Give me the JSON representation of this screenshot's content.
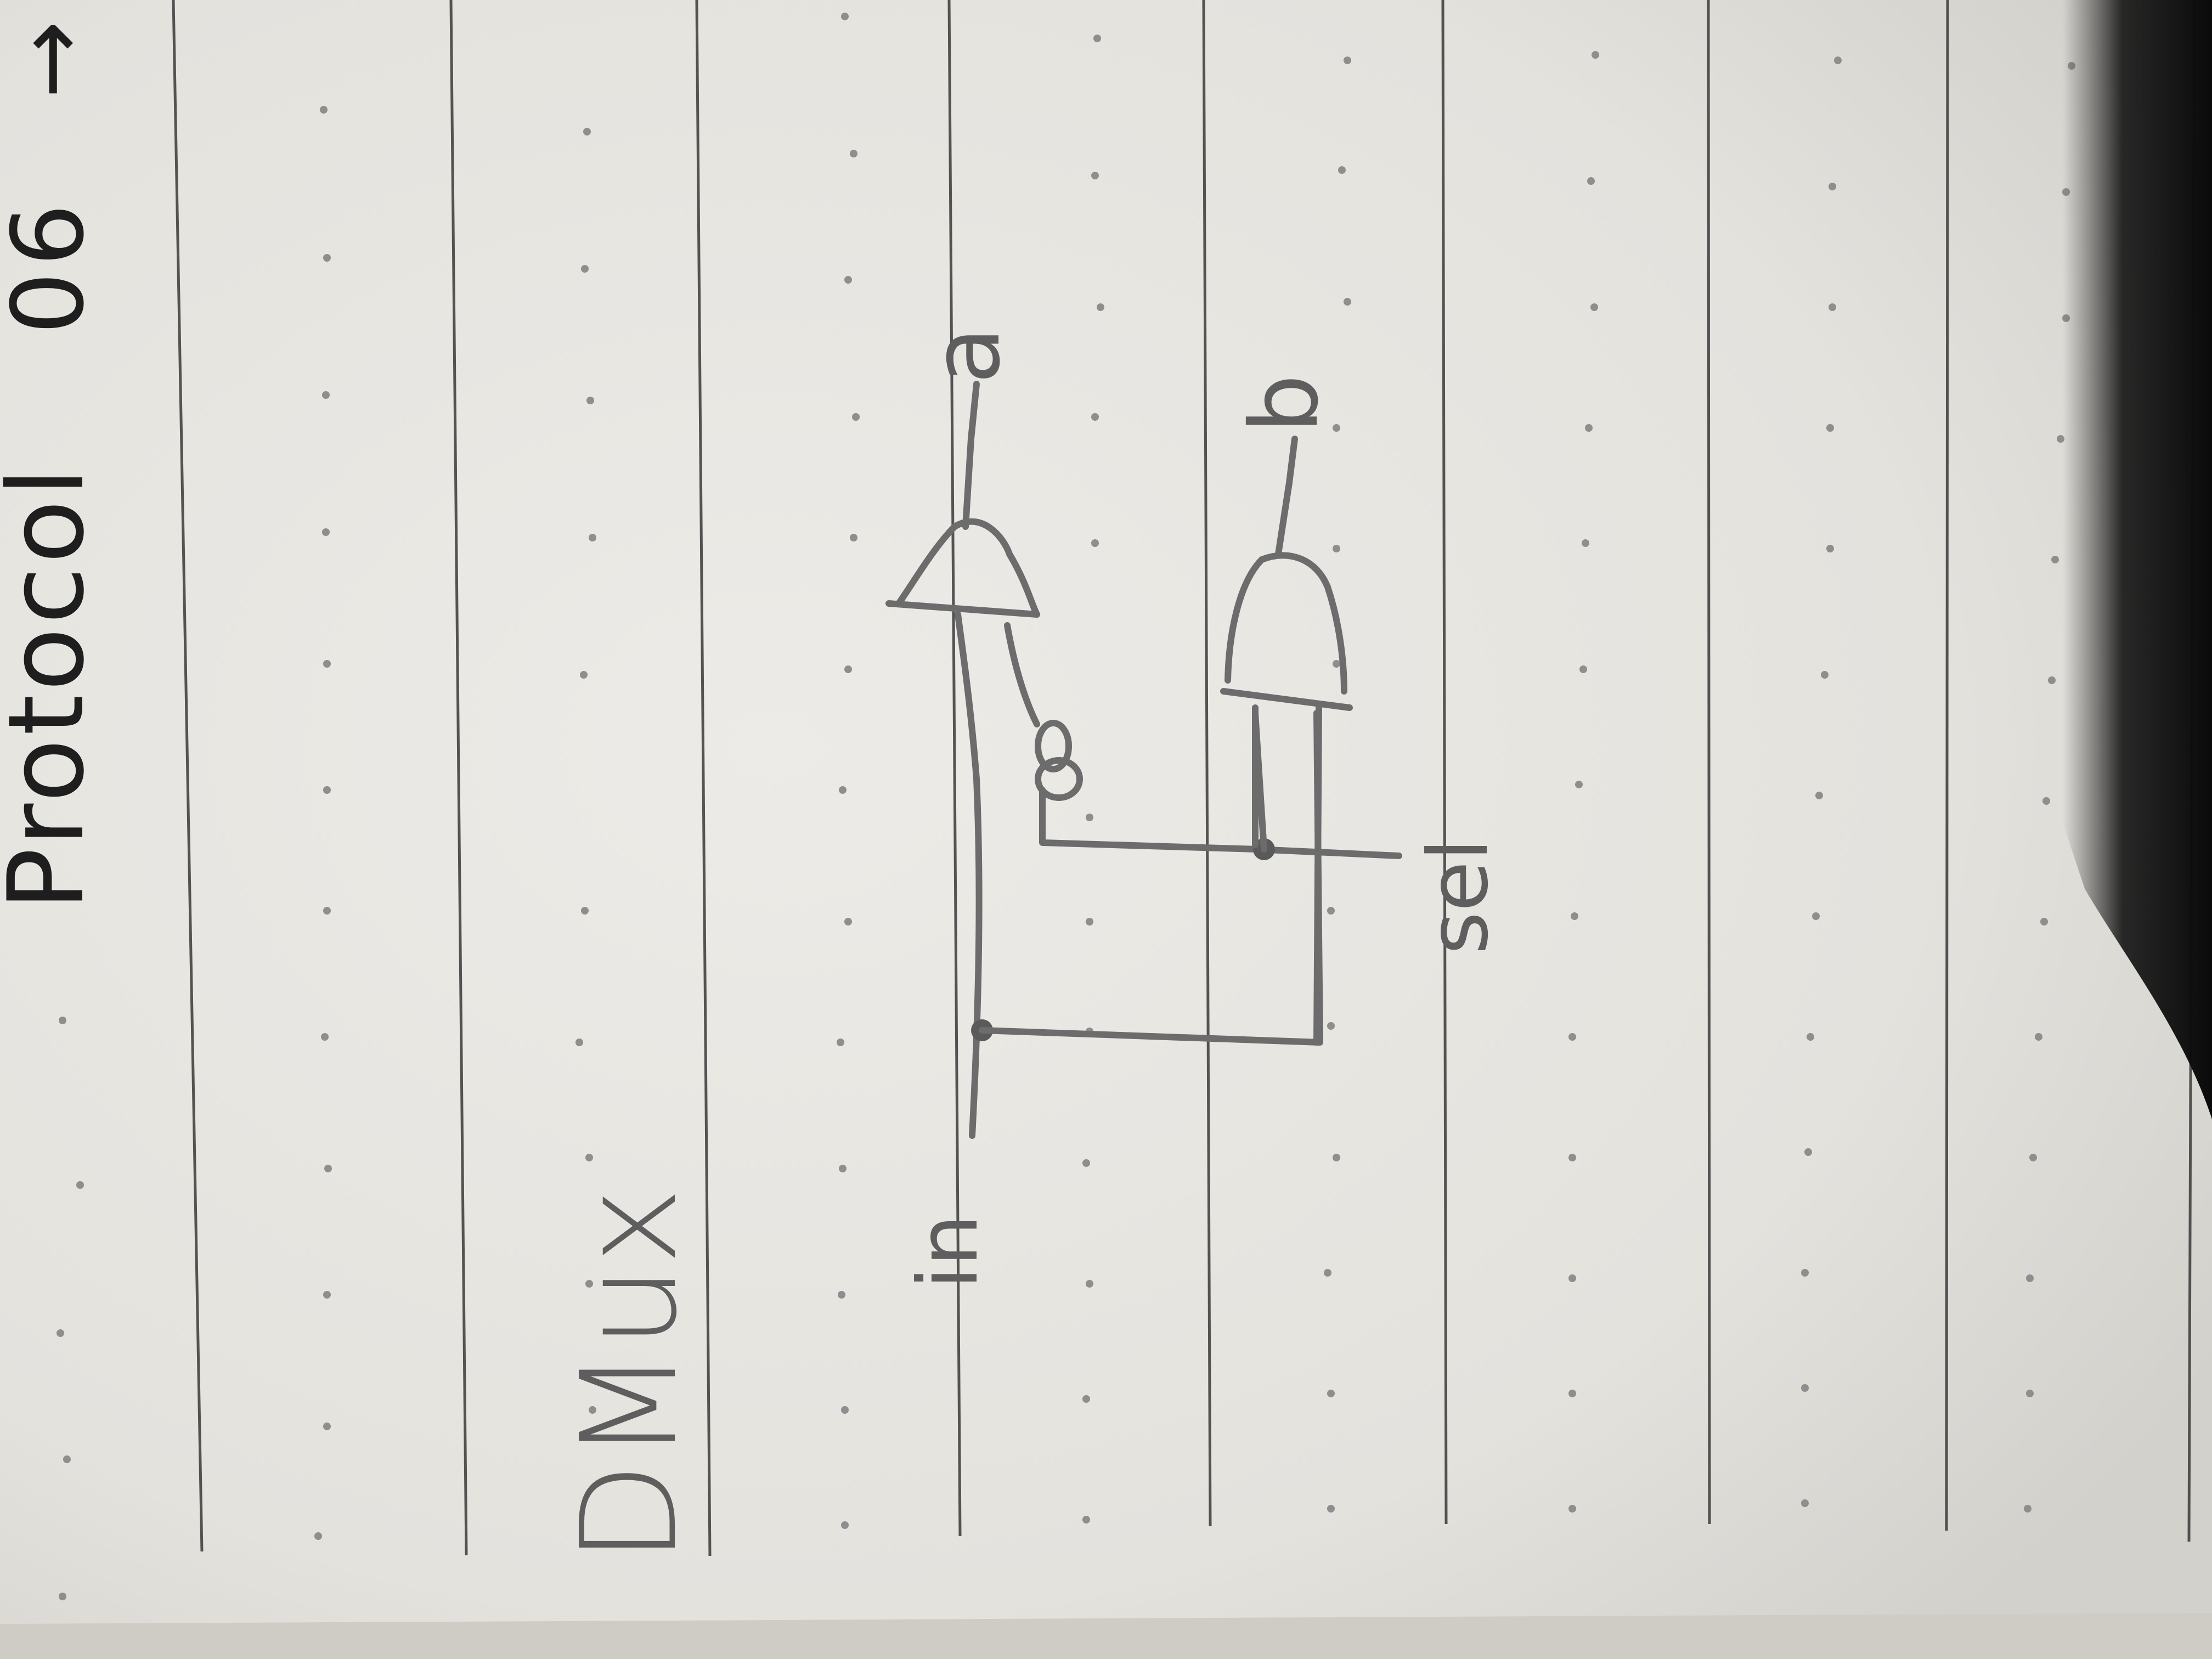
{
  "page": {
    "paper_color": "#e8e6e1",
    "line_color": "#3a3a3a",
    "dot_color": "#8e8e8e",
    "pencil_color": "#6c6c6c",
    "ink_color": "#1e1e1e",
    "shadow_color": "#0d0d0d"
  },
  "header": {
    "word": "Protocol",
    "number": "06",
    "arrow": "→"
  },
  "diagram": {
    "title": "DMux",
    "input_label": "in",
    "select_label": "sel",
    "output_a_label": "a",
    "output_b_label": "b",
    "gates": [
      {
        "name": "and-gate-a",
        "type": "AND",
        "inverted_input": true
      },
      {
        "name": "and-gate-b",
        "type": "AND",
        "inverted_input": false
      }
    ]
  }
}
